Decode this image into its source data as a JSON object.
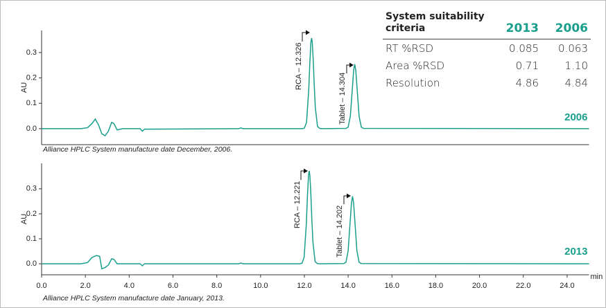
{
  "chart_data": [
    {
      "type": "line",
      "ylabel": "AU",
      "ylim": [
        -0.063,
        0.387
      ],
      "yticks": [
        {
          "value": 0,
          "label": "0.0"
        },
        0.1,
        0.2,
        0.3
      ],
      "xlim": [
        0,
        25
      ],
      "x": [
        0,
        1.8,
        2.1,
        2.3,
        2.45,
        2.6,
        2.75,
        2.9,
        3.05,
        3.2,
        3.3,
        3.45,
        3.7,
        4.5,
        4.6,
        4.7,
        9.0,
        9.1,
        9.2,
        11.9,
        12.0,
        12.1,
        12.2,
        12.25,
        12.3,
        12.33,
        12.36,
        12.4,
        12.45,
        12.5,
        12.6,
        12.7,
        12.8,
        13.9,
        14.0,
        14.1,
        14.2,
        14.25,
        14.3,
        14.35,
        14.4,
        14.5,
        14.6,
        14.7,
        25
      ],
      "series": [
        {
          "name": "2006",
          "color": "#1a9e8c",
          "values": [
            0,
            0,
            0.004,
            0.02,
            0.038,
            0.015,
            -0.02,
            -0.028,
            -0.01,
            0.025,
            0.02,
            -0.005,
            0,
            0,
            -0.01,
            -0.002,
            0,
            0.003,
            0,
            0,
            0.002,
            0.025,
            0.153,
            0.259,
            0.341,
            0.357,
            0.341,
            0.28,
            0.174,
            0.084,
            0.009,
            0.001,
            0,
            0.001,
            0.006,
            0.049,
            0.168,
            0.229,
            0.254,
            0.229,
            0.168,
            0.049,
            0.006,
            0.001,
            0
          ]
        }
      ],
      "annotations": [
        {
          "text": "RCA – 12.326"
        },
        {
          "text": "Tablet – 14.304"
        }
      ],
      "caption": "Alliance HPLC System manufacture date December, 2006."
    },
    {
      "type": "line",
      "ylabel": "AU",
      "xlabel": "min",
      "ylim": [
        -0.044,
        0.402
      ],
      "yticks": [
        {
          "value": 0,
          "label": "0.0"
        },
        0.1,
        0.2,
        0.3
      ],
      "xlim": [
        0,
        25
      ],
      "xticks": [
        {
          "value": 0,
          "label": "0.0"
        },
        {
          "value": 2,
          "label": "2.0"
        },
        {
          "value": 4,
          "label": "4.0"
        },
        {
          "value": 6,
          "label": "6.0"
        },
        {
          "value": 8,
          "label": "8.0"
        },
        {
          "value": 10,
          "label": "10.0"
        },
        {
          "value": 12,
          "label": "12.0"
        },
        {
          "value": 14,
          "label": "14.0"
        },
        {
          "value": 16,
          "label": "16.0"
        },
        {
          "value": 18,
          "label": "18.0"
        },
        {
          "value": 20,
          "label": "20.0"
        },
        {
          "value": 22,
          "label": "22.0"
        },
        {
          "value": 24,
          "label": "24.0"
        }
      ],
      "x": [
        0,
        1.8,
        2.1,
        2.3,
        2.5,
        2.65,
        2.75,
        2.9,
        3.05,
        3.2,
        3.3,
        3.45,
        4.5,
        4.6,
        4.7,
        9.0,
        9.1,
        9.2,
        11.79,
        11.89,
        11.99,
        12.09,
        12.14,
        12.19,
        12.22,
        12.25,
        12.29,
        12.34,
        12.39,
        12.49,
        12.59,
        12.69,
        13.8,
        13.9,
        14.0,
        14.1,
        14.15,
        14.2,
        14.25,
        14.3,
        14.4,
        14.5,
        14.6,
        25
      ],
      "series": [
        {
          "name": "2013",
          "color": "#1a9e8c",
          "values": [
            0,
            0,
            0.005,
            0.025,
            0.033,
            0.03,
            -0.02,
            -0.015,
            -0.005,
            0.02,
            0.018,
            0,
            0,
            -0.008,
            0,
            0,
            0.003,
            0,
            0,
            0.002,
            0.026,
            0.159,
            0.27,
            0.355,
            0.372,
            0.355,
            0.292,
            0.181,
            0.088,
            0.009,
            0.001,
            0,
            0.001,
            0.006,
            0.052,
            0.179,
            0.243,
            0.27,
            0.243,
            0.179,
            0.052,
            0.006,
            0.001,
            0
          ]
        }
      ],
      "annotations": [
        {
          "text": "RCA – 12.221"
        },
        {
          "text": "Tablet – 14.202"
        }
      ],
      "caption": "Alliance HPLC System manufacture date January, 2013."
    }
  ],
  "table": {
    "header": [
      "System suitability criteria",
      "2013",
      "2006"
    ],
    "rows": [
      [
        "RT %RSD",
        "0.085",
        "0.063"
      ],
      [
        "Area %RSD",
        "0.71",
        "1.10"
      ],
      [
        "Resolution",
        "4.86",
        "4.84"
      ]
    ]
  }
}
